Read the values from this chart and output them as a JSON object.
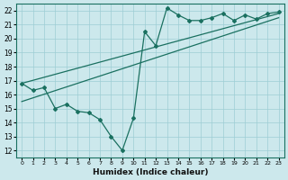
{
  "xlabel": "Humidex (Indice chaleur)",
  "bg_color": "#cce8ec",
  "grid_color": "#9ecdd4",
  "line_color": "#1a7060",
  "xlim": [
    -0.5,
    23.5
  ],
  "ylim": [
    11.5,
    22.5
  ],
  "xticks": [
    0,
    1,
    2,
    3,
    4,
    5,
    6,
    7,
    8,
    9,
    10,
    11,
    12,
    13,
    14,
    15,
    16,
    17,
    18,
    19,
    20,
    21,
    22,
    23
  ],
  "yticks": [
    12,
    13,
    14,
    15,
    16,
    17,
    18,
    19,
    20,
    21,
    22
  ],
  "line1_x": [
    0,
    1,
    2,
    3,
    4,
    5,
    6,
    7,
    8,
    9,
    10,
    11,
    12,
    13,
    14,
    15,
    16,
    17,
    18,
    19,
    20,
    21,
    22,
    23
  ],
  "line1_y": [
    16.8,
    16.3,
    16.5,
    15.0,
    15.3,
    14.8,
    14.7,
    14.2,
    13.0,
    12.0,
    14.3,
    20.5,
    19.5,
    22.2,
    21.7,
    21.3,
    21.3,
    21.5,
    21.8,
    21.3,
    21.7,
    21.4,
    21.8,
    21.9
  ],
  "line2_x": [
    0,
    23
  ],
  "line2_y": [
    16.8,
    21.8
  ],
  "line3_x": [
    0,
    23
  ],
  "line3_y": [
    15.5,
    21.5
  ]
}
